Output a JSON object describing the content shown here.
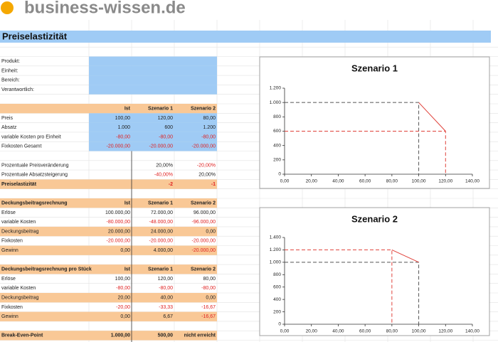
{
  "header": {
    "logo": "business-wissen.de"
  },
  "sheet": {
    "title": "Preiselastizität",
    "blocks": [
      {
        "rows": [
          {
            "label": "Produkt:",
            "cell_fill": "#9fcbf5"
          },
          {
            "label": "Einheit:",
            "cell_fill": "#9fcbf5"
          },
          {
            "label": "Bereich:",
            "cell_fill": "#9fcbf5"
          },
          {
            "label": "Verantwortlich:",
            "cell_fill": "#9fcbf5"
          }
        ]
      },
      {
        "columns": [
          "Ist",
          "Szenario 1",
          "Szenario 2"
        ],
        "header_fill": "#f9c896",
        "rows": [
          {
            "label": "Preis",
            "cells": [
              "100,00",
              "120,00",
              "80,00"
            ],
            "cell_fill": "#9fcbf5"
          },
          {
            "label": "Absatz",
            "cells": [
              "1.000",
              "600",
              "1.200"
            ],
            "cell_fill": "#9fcbf5"
          },
          {
            "label": "variable Kosten pro Einheit",
            "cells": [
              "-80,00",
              "-80,00",
              "-80,00"
            ],
            "cell_fill": "#9fcbf5"
          },
          {
            "label": "Fixkosten Gesamt",
            "cells": [
              "-20.000,00",
              "-20.000,00",
              "-20.000,00"
            ],
            "cell_fill": "#9fcbf5"
          }
        ]
      },
      {
        "rows": [
          {
            "label": "Prozentuale Preisveränderung",
            "cells": [
              null,
              "20,00%",
              "-20,00%"
            ]
          },
          {
            "label": "Prozentuale Absatzsteigerung",
            "cells": [
              null,
              "-40,00%",
              "20,00%"
            ]
          },
          {
            "label": "Preiselastizität",
            "cells": [
              null,
              "-2",
              "-1"
            ],
            "row_fill": "#f9c896",
            "bold": true
          }
        ]
      },
      {
        "title": "Deckungsbeitragsrechnung",
        "columns": [
          "Ist",
          "Szenario 1",
          "Szenario 2"
        ],
        "header_fill": "#f9c896",
        "rows": [
          {
            "label": "Erlöse",
            "cells": [
              "100.000,00",
              "72.000,00",
              "96.000,00"
            ]
          },
          {
            "label": "variable Kosten",
            "cells": [
              "-80.000,00",
              "-48.000,00",
              "-96.000,00"
            ]
          },
          {
            "label": "Deckungsbeitrag",
            "cells": [
              "20.000,00",
              "24.000,00",
              "0,00"
            ],
            "row_fill": "#f9c896"
          },
          {
            "label": "Fixkosten",
            "cells": [
              "-20.000,00",
              "-20.000,00",
              "-20.000,00"
            ]
          },
          {
            "label": "Gewinn",
            "cells": [
              "0,00",
              "4.000,00",
              "-20.000,00"
            ],
            "row_fill": "#f9c896"
          }
        ]
      },
      {
        "title": "Deckungsbeitragsrechnung pro Stück",
        "columns": [
          "Ist",
          "Szenario 1",
          "Szenario 2"
        ],
        "header_fill": "#f9c896",
        "rows": [
          {
            "label": "Erlöse",
            "cells": [
              "100,00",
              "120,00",
              "80,00"
            ]
          },
          {
            "label": "variable Kosten",
            "cells": [
              "-80,00",
              "-80,00",
              "-80,00"
            ]
          },
          {
            "label": "Deckungsbeitrag",
            "cells": [
              "20,00",
              "40,00",
              "0,00"
            ],
            "row_fill": "#f9c896"
          },
          {
            "label": "Fixkosten",
            "cells": [
              "-20,00",
              "-33,33",
              "-16,67"
            ]
          },
          {
            "label": "Gewinn",
            "cells": [
              "0,00",
              "6,67",
              "-16,67"
            ],
            "row_fill": "#f9c896"
          }
        ]
      },
      {
        "rows": [
          {
            "label": "Break-Even-Point",
            "cells": [
              "1.000,00",
              "500,00",
              "nicht erreicht"
            ],
            "row_fill": "#f9c896",
            "bold": true
          }
        ]
      }
    ]
  },
  "chart_data": [
    {
      "type": "line",
      "title": "Szenario 1",
      "xlim": [
        0,
        140
      ],
      "xticks": [
        {
          "value": 0,
          "label": "0,00"
        },
        {
          "value": 20,
          "label": "20,00"
        },
        {
          "value": 40,
          "label": "40,00"
        },
        {
          "value": 60,
          "label": "60,00"
        },
        {
          "value": 80,
          "label": "80,00"
        },
        {
          "value": 100,
          "label": "100,00"
        },
        {
          "value": 120,
          "label": "120,00"
        },
        {
          "value": 140,
          "label": "140,00"
        }
      ],
      "ylim": [
        0,
        1200
      ],
      "yticks": [
        0,
        200,
        400,
        600,
        800,
        {
          "value": 1000,
          "label": "1.000"
        },
        {
          "value": 1200,
          "label": "1.200"
        }
      ],
      "series": [
        {
          "color": "#555555",
          "dash": true,
          "x": [
            0,
            100,
            100
          ],
          "values": [
            1000,
            1000,
            0
          ]
        },
        {
          "color": "#e0413a",
          "dash": true,
          "x": [
            0,
            120,
            120
          ],
          "values": [
            600,
            600,
            0
          ]
        },
        {
          "color": "#e0413a",
          "dash": false,
          "x": [
            100,
            120
          ],
          "values": [
            1000,
            600
          ]
        }
      ]
    },
    {
      "type": "line",
      "title": "Szenario 2",
      "xlim": [
        0,
        140
      ],
      "xticks": [
        {
          "value": 0,
          "label": "0,00"
        },
        {
          "value": 20,
          "label": "20,00"
        },
        {
          "value": 40,
          "label": "40,00"
        },
        {
          "value": 60,
          "label": "60,00"
        },
        {
          "value": 80,
          "label": "80,00"
        },
        {
          "value": 100,
          "label": "100,00"
        },
        {
          "value": 120,
          "label": "120,00"
        },
        {
          "value": 140,
          "label": "140,00"
        }
      ],
      "ylim": [
        0,
        1400
      ],
      "yticks": [
        0,
        200,
        400,
        600,
        800,
        {
          "value": 1000,
          "label": "1.000"
        },
        {
          "value": 1200,
          "label": "1.200"
        },
        {
          "value": 1400,
          "label": "1.400"
        }
      ],
      "series": [
        {
          "color": "#555555",
          "dash": true,
          "x": [
            0,
            100,
            100
          ],
          "values": [
            1000,
            1000,
            0
          ]
        },
        {
          "color": "#e0413a",
          "dash": true,
          "x": [
            0,
            80,
            80
          ],
          "values": [
            1200,
            1200,
            0
          ]
        },
        {
          "color": "#e0413a",
          "dash": false,
          "x": [
            80,
            100
          ],
          "values": [
            1200,
            1000
          ]
        }
      ]
    }
  ]
}
